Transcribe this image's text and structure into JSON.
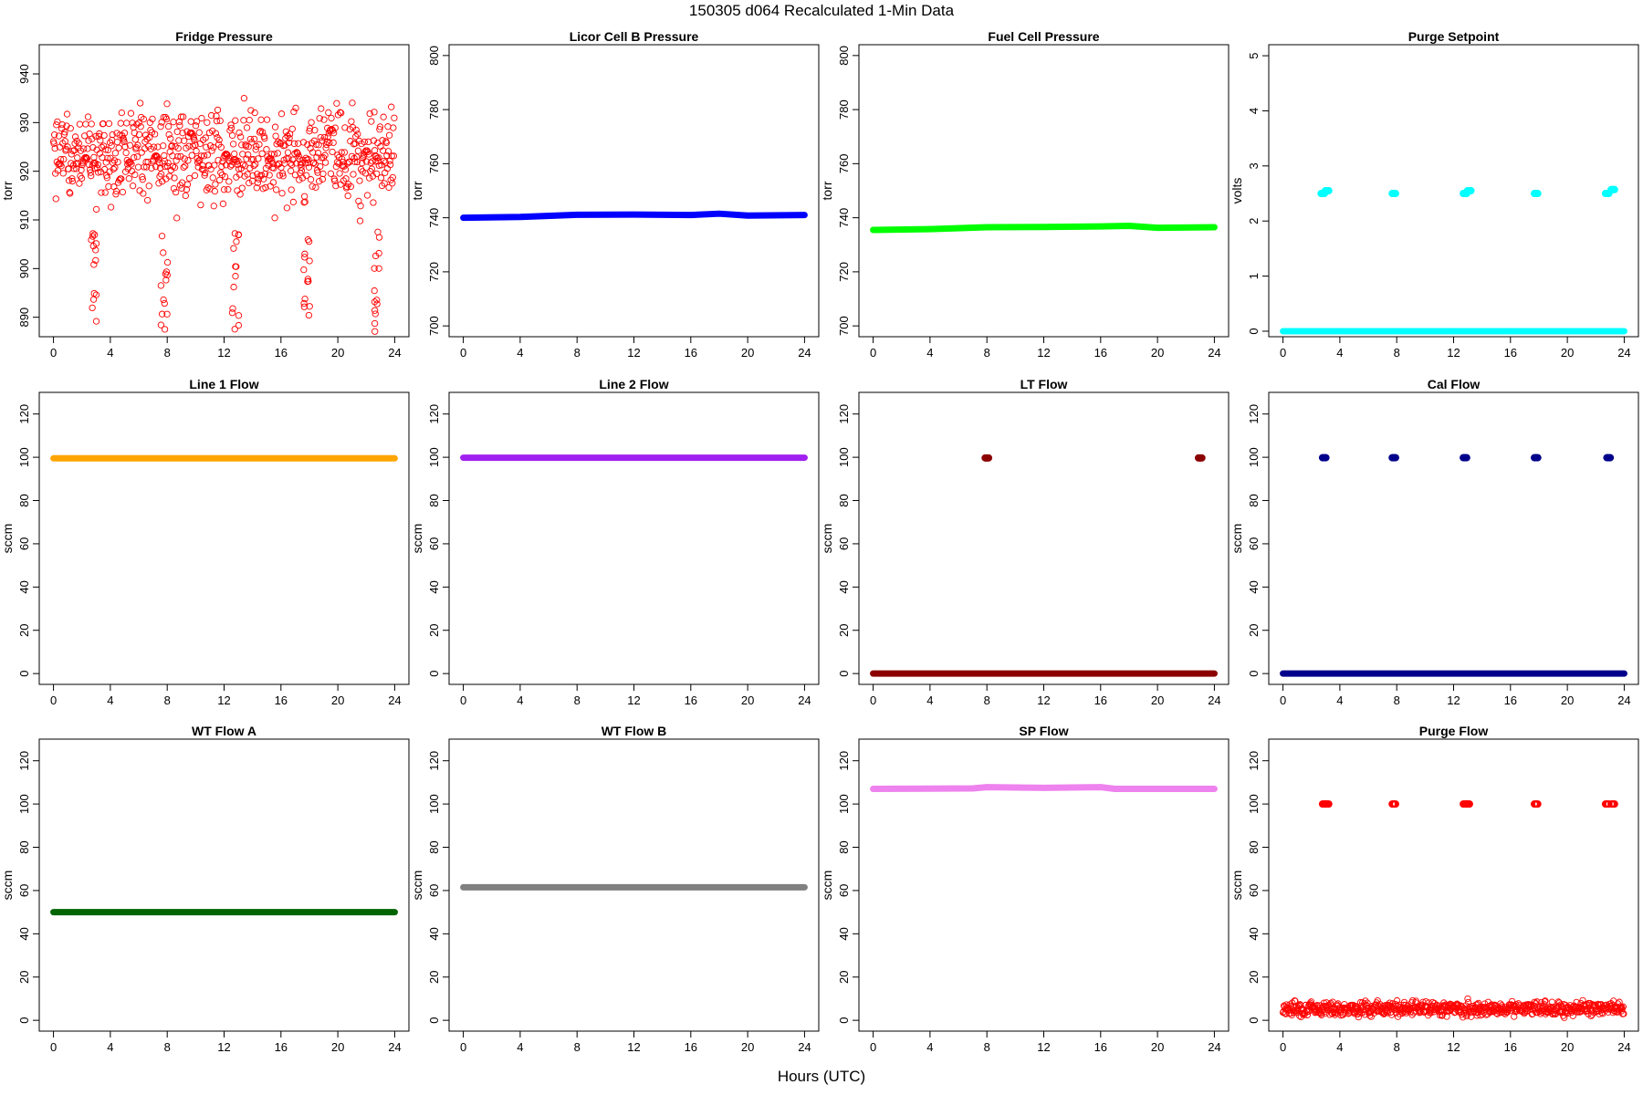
{
  "title": "150305   d064   Recalculated 1-Min Data",
  "xlabel": "Hours (UTC)",
  "chart_data": [
    {
      "type": "scatter",
      "title": "Fridge Pressure",
      "ylabel": "torr",
      "ylim": [
        886,
        946
      ],
      "yticks": [
        890,
        900,
        910,
        920,
        930,
        940
      ],
      "xlim": [
        -1,
        25
      ],
      "xticks": [
        0,
        4,
        8,
        12,
        16,
        20,
        24
      ],
      "color": "#ff0000",
      "marker": "open",
      "series": [
        {
          "mode": "noise",
          "base": 923,
          "amp": 7,
          "seed": 1
        },
        {
          "mode": "drops",
          "centers": [
            2.9,
            7.8,
            12.8,
            17.8,
            22.8
          ],
          "min": 887,
          "max": 908
        }
      ]
    },
    {
      "type": "line",
      "title": "Licor Cell B Pressure",
      "ylabel": "torr",
      "ylim": [
        696,
        804
      ],
      "yticks": [
        700,
        720,
        740,
        760,
        780,
        800
      ],
      "xlim": [
        -1,
        25
      ],
      "xticks": [
        0,
        4,
        8,
        12,
        16,
        20,
        24
      ],
      "color": "#0000ff",
      "series": [
        {
          "mode": "band",
          "points": [
            [
              0,
              740
            ],
            [
              4,
              740.3
            ],
            [
              8,
              741.1
            ],
            [
              12,
              741.2
            ],
            [
              16,
              741
            ],
            [
              18,
              741.5
            ],
            [
              20,
              740.8
            ],
            [
              24,
              741
            ]
          ]
        }
      ]
    },
    {
      "type": "line",
      "title": "Fuel Cell Pressure",
      "ylabel": "torr",
      "ylim": [
        696,
        804
      ],
      "yticks": [
        700,
        720,
        740,
        760,
        780,
        800
      ],
      "xlim": [
        -1,
        25
      ],
      "xticks": [
        0,
        4,
        8,
        12,
        16,
        20,
        24
      ],
      "color": "#00ff00",
      "series": [
        {
          "mode": "band",
          "points": [
            [
              0,
              735.5
            ],
            [
              4,
              735.8
            ],
            [
              8,
              736.5
            ],
            [
              12,
              736.6
            ],
            [
              16,
              736.8
            ],
            [
              18,
              737
            ],
            [
              20,
              736.3
            ],
            [
              24,
              736.5
            ]
          ]
        }
      ]
    },
    {
      "type": "scatter",
      "title": "Purge Setpoint",
      "ylabel": "volts",
      "ylim": [
        -0.1,
        5.2
      ],
      "yticks": [
        0,
        1,
        2,
        3,
        4,
        5
      ],
      "xlim": [
        -1,
        25
      ],
      "xticks": [
        0,
        4,
        8,
        12,
        16,
        20,
        24
      ],
      "color": "#00ffff",
      "series": [
        {
          "mode": "band",
          "points": [
            [
              0,
              0
            ],
            [
              24,
              0
            ]
          ]
        },
        {
          "mode": "clusters",
          "centers": [
            [
              2.8,
              2.5
            ],
            [
              3.1,
              2.55
            ],
            [
              7.8,
              2.5
            ],
            [
              12.8,
              2.5
            ],
            [
              13.1,
              2.55
            ],
            [
              17.8,
              2.5
            ],
            [
              22.8,
              2.5
            ],
            [
              23.2,
              2.57
            ]
          ]
        }
      ]
    },
    {
      "type": "line",
      "title": "Line 1 Flow",
      "ylabel": "sccm",
      "ylim": [
        -5,
        130
      ],
      "yticks": [
        0,
        20,
        40,
        60,
        80,
        100,
        120
      ],
      "xlim": [
        -1,
        25
      ],
      "xticks": [
        0,
        4,
        8,
        12,
        16,
        20,
        24
      ],
      "color": "#ffa500",
      "series": [
        {
          "mode": "band",
          "points": [
            [
              0,
              99.5
            ],
            [
              24,
              99.5
            ]
          ]
        }
      ]
    },
    {
      "type": "line",
      "title": "Line 2 Flow",
      "ylabel": "sccm",
      "ylim": [
        -5,
        130
      ],
      "yticks": [
        0,
        20,
        40,
        60,
        80,
        100,
        120
      ],
      "xlim": [
        -1,
        25
      ],
      "xticks": [
        0,
        4,
        8,
        12,
        16,
        20,
        24
      ],
      "color": "#a020f0",
      "series": [
        {
          "mode": "band",
          "points": [
            [
              0,
              99.8
            ],
            [
              24,
              99.8
            ]
          ]
        }
      ]
    },
    {
      "type": "scatter",
      "title": "LT Flow",
      "ylabel": "sccm",
      "ylim": [
        -5,
        130
      ],
      "yticks": [
        0,
        20,
        40,
        60,
        80,
        100,
        120
      ],
      "xlim": [
        -1,
        25
      ],
      "xticks": [
        0,
        4,
        8,
        12,
        16,
        20,
        24
      ],
      "color": "#8b0000",
      "series": [
        {
          "mode": "band",
          "points": [
            [
              0,
              0
            ],
            [
              24,
              0
            ]
          ]
        },
        {
          "mode": "clusters",
          "centers": [
            [
              8,
              99.7
            ],
            [
              23,
              99.7
            ]
          ]
        }
      ]
    },
    {
      "type": "scatter",
      "title": "Cal Flow",
      "ylabel": "sccm",
      "ylim": [
        -5,
        130
      ],
      "yticks": [
        0,
        20,
        40,
        60,
        80,
        100,
        120
      ],
      "xlim": [
        -1,
        25
      ],
      "xticks": [
        0,
        4,
        8,
        12,
        16,
        20,
        24
      ],
      "color": "#00008b",
      "series": [
        {
          "mode": "band",
          "points": [
            [
              0,
              0
            ],
            [
              24,
              0
            ]
          ]
        },
        {
          "mode": "clusters",
          "centers": [
            [
              2.9,
              99.8
            ],
            [
              7.8,
              99.8
            ],
            [
              12.8,
              99.8
            ],
            [
              17.8,
              99.8
            ],
            [
              22.9,
              99.8
            ]
          ]
        }
      ]
    },
    {
      "type": "line",
      "title": "WT Flow A",
      "ylabel": "sccm",
      "ylim": [
        -5,
        130
      ],
      "yticks": [
        0,
        20,
        40,
        60,
        80,
        100,
        120
      ],
      "xlim": [
        -1,
        25
      ],
      "xticks": [
        0,
        4,
        8,
        12,
        16,
        20,
        24
      ],
      "color": "#006400",
      "series": [
        {
          "mode": "band",
          "points": [
            [
              0,
              50
            ],
            [
              24,
              50
            ]
          ]
        }
      ]
    },
    {
      "type": "line",
      "title": "WT Flow B",
      "ylabel": "sccm",
      "ylim": [
        -5,
        130
      ],
      "yticks": [
        0,
        20,
        40,
        60,
        80,
        100,
        120
      ],
      "xlim": [
        -1,
        25
      ],
      "xticks": [
        0,
        4,
        8,
        12,
        16,
        20,
        24
      ],
      "color": "#808080",
      "series": [
        {
          "mode": "band",
          "points": [
            [
              0,
              61.5
            ],
            [
              24,
              61.5
            ]
          ]
        }
      ]
    },
    {
      "type": "line",
      "title": "SP Flow",
      "ylabel": "sccm",
      "ylim": [
        -5,
        130
      ],
      "yticks": [
        0,
        20,
        40,
        60,
        80,
        100,
        120
      ],
      "xlim": [
        -1,
        25
      ],
      "xticks": [
        0,
        4,
        8,
        12,
        16,
        20,
        24
      ],
      "color": "#ee82ee",
      "series": [
        {
          "mode": "band",
          "points": [
            [
              0,
              107
            ],
            [
              7,
              107.2
            ],
            [
              8,
              107.8
            ],
            [
              12,
              107.5
            ],
            [
              16,
              107.8
            ],
            [
              17,
              107
            ],
            [
              24,
              107
            ]
          ]
        }
      ]
    },
    {
      "type": "scatter",
      "title": "Purge Flow",
      "ylabel": "sccm",
      "ylim": [
        -5,
        130
      ],
      "yticks": [
        0,
        20,
        40,
        60,
        80,
        100,
        120
      ],
      "xlim": [
        -1,
        25
      ],
      "xticks": [
        0,
        4,
        8,
        12,
        16,
        20,
        24
      ],
      "color": "#ff0000",
      "marker": "open",
      "series": [
        {
          "mode": "noise",
          "base": 5.5,
          "amp": 2.5,
          "seed": 7
        },
        {
          "mode": "clusters",
          "centers": [
            [
              2.9,
              100
            ],
            [
              3.1,
              100
            ],
            [
              7.8,
              100
            ],
            [
              12.8,
              100
            ],
            [
              13.0,
              100
            ],
            [
              17.8,
              100
            ],
            [
              22.8,
              100
            ],
            [
              23.2,
              100
            ]
          ]
        }
      ]
    }
  ]
}
